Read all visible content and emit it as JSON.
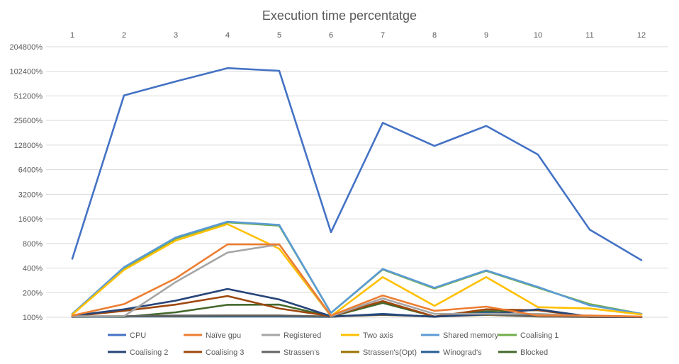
{
  "chart_data": {
    "type": "line",
    "title": "Execution time percentatge",
    "xlabel": "",
    "ylabel": "",
    "y_scale": "log2",
    "x_axis_position": "top",
    "ylim": [
      100,
      204800
    ],
    "grid": "horizontal",
    "legend_position": "bottom",
    "x": [
      1,
      2,
      3,
      4,
      5,
      6,
      7,
      8,
      9,
      10,
      11,
      12
    ],
    "x_tick_labels": [
      "1",
      "2",
      "3",
      "4",
      "5",
      "6",
      "7",
      "8",
      "9",
      "10",
      "11",
      "12"
    ],
    "y_ticks": [
      100,
      200,
      400,
      800,
      1600,
      3200,
      6400,
      12800,
      25600,
      51200,
      102400,
      204800
    ],
    "y_tick_labels": [
      "100%",
      "200%",
      "400%",
      "800%",
      "1600%",
      "3200%",
      "6400%",
      "12800%",
      "25600%",
      "51200%",
      "102400%",
      "204800%"
    ],
    "series": [
      {
        "name": "CPU",
        "color": "#4472C4",
        "values": [
          520,
          52000,
          77000,
          112000,
          104000,
          1100,
          24000,
          12500,
          22000,
          9800,
          1180,
          500
        ]
      },
      {
        "name": "Naïve gpu",
        "color": "#ED7D31",
        "values": [
          105,
          145,
          300,
          780,
          780,
          105,
          185,
          120,
          135,
          105,
          105,
          102
        ]
      },
      {
        "name": "Registered",
        "color": "#A5A5A5",
        "values": [
          103,
          103,
          270,
          620,
          780,
          103,
          170,
          110,
          110,
          110,
          103,
          102
        ]
      },
      {
        "name": "Two axis",
        "color": "#FFC000",
        "values": [
          108,
          380,
          870,
          1380,
          690,
          103,
          310,
          138,
          310,
          133,
          128,
          108
        ]
      },
      {
        "name": "Shared memory",
        "color": "#5B9BD5",
        "values": [
          110,
          410,
          950,
          1480,
          1350,
          113,
          390,
          230,
          375,
          235,
          140,
          110
        ]
      },
      {
        "name": "Coalising 1",
        "color": "#70AD47",
        "values": [
          110,
          395,
          920,
          1450,
          1320,
          113,
          385,
          225,
          370,
          230,
          145,
          110
        ]
      },
      {
        "name": "Coalising 2",
        "color": "#264478",
        "values": [
          104,
          125,
          160,
          222,
          165,
          103,
          108,
          102,
          108,
          125,
          102,
          101
        ]
      },
      {
        "name": "Coalising 3",
        "color": "#9E480E",
        "values": [
          103,
          120,
          143,
          182,
          128,
          103,
          158,
          102,
          125,
          122,
          101,
          101
        ]
      },
      {
        "name": "Strassen's",
        "color": "#636363",
        "values": [
          102,
          103,
          105,
          105,
          105,
          102,
          108,
          102,
          108,
          102,
          101,
          101
        ]
      },
      {
        "name": "Strassen's(Opt)",
        "color": "#997300",
        "values": [
          102,
          103,
          104,
          105,
          105,
          102,
          107,
          102,
          107,
          102,
          101,
          101
        ]
      },
      {
        "name": "Winograd's",
        "color": "#255E91",
        "values": [
          101,
          102,
          102,
          102,
          102,
          101,
          110,
          101,
          114,
          105,
          101,
          101
        ]
      },
      {
        "name": "Blocked",
        "color": "#43682B",
        "values": [
          102,
          101,
          115,
          142,
          143,
          102,
          150,
          102,
          118,
          122,
          102,
          101
        ]
      }
    ]
  }
}
